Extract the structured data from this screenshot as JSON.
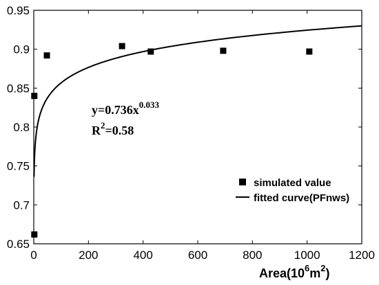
{
  "chart_data": {
    "type": "scatter",
    "xlabel": {
      "base": "Area(10",
      "sup1": "6",
      "mid": "m",
      "sup2": "2",
      "end": ")"
    },
    "ylabel": "",
    "xlim": [
      0,
      1200
    ],
    "ylim": [
      0.65,
      0.95
    ],
    "x_ticks": [
      0,
      200,
      400,
      600,
      800,
      1000,
      1200
    ],
    "y_ticks": [
      0.65,
      0.7,
      0.75,
      0.8,
      0.85,
      0.9,
      0.95
    ],
    "x_tick_labels": [
      "0",
      "200",
      "400",
      "600",
      "800",
      "1000",
      "1200"
    ],
    "y_tick_labels": [
      "0.65",
      "0.7",
      "0.75",
      "0.8",
      "0.85",
      "0.9",
      "0.95"
    ],
    "grid": false,
    "legend_position": "bottom-right",
    "series": [
      {
        "name": "simulated value",
        "kind": "scatter",
        "marker": "square",
        "color": "#000000",
        "points": [
          {
            "x": 2,
            "y": 0.662
          },
          {
            "x": 2,
            "y": 0.84
          },
          {
            "x": 48,
            "y": 0.892
          },
          {
            "x": 323,
            "y": 0.904
          },
          {
            "x": 428,
            "y": 0.897
          },
          {
            "x": 693,
            "y": 0.898
          },
          {
            "x": 1008,
            "y": 0.897
          }
        ]
      },
      {
        "name": "fitted curve(PFnws)",
        "kind": "line",
        "color": "#000000",
        "equation": {
          "a": 0.736,
          "b": 0.033,
          "x_from": 1,
          "x_to": 1200
        }
      }
    ],
    "annotation": {
      "equation_base": "y=0.736x",
      "equation_exp": "0.033",
      "r2_base": "R",
      "r2_exp": "2",
      "r2_value": "=0.58"
    }
  }
}
